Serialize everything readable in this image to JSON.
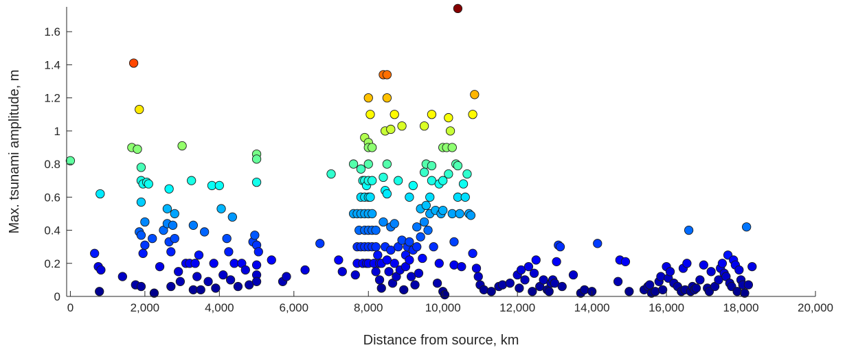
{
  "chart_data": {
    "type": "scatter",
    "title": "",
    "xlabel": "Distance from source, km",
    "ylabel": "Max. tsunami amplitude, m",
    "xlim": [
      -100,
      20000
    ],
    "ylim": [
      0,
      1.75
    ],
    "xticks": [
      0,
      2000,
      4000,
      6000,
      8000,
      10000,
      12000,
      14000,
      16000,
      18000,
      20000
    ],
    "xtick_labels": [
      "0",
      "2,000",
      "4,000",
      "6,000",
      "8,000",
      "10,000",
      "12,000",
      "14,000",
      "16,000",
      "18,000",
      "20,000"
    ],
    "yticks": [
      0,
      0.2,
      0.4,
      0.6,
      0.8,
      1.0,
      1.2,
      1.4,
      1.6
    ],
    "ytick_labels": [
      "0",
      "0.2",
      "0.4",
      "0.6",
      "0.8",
      "1",
      "1.2",
      "1.4",
      "1.6"
    ],
    "grid": false,
    "legend": "none",
    "color_encoding": "jet colormap by amplitude (0 m = dark blue, 1.75 m = dark red)",
    "points": [
      [
        0,
        0.82
      ],
      [
        650,
        0.26
      ],
      [
        750,
        0.18
      ],
      [
        780,
        0.03
      ],
      [
        800,
        0.62
      ],
      [
        820,
        0.16
      ],
      [
        1400,
        0.12
      ],
      [
        1650,
        0.9
      ],
      [
        1700,
        1.41
      ],
      [
        1750,
        0.07
      ],
      [
        1800,
        0.89
      ],
      [
        1850,
        1.13
      ],
      [
        1850,
        0.39
      ],
      [
        1900,
        0.78
      ],
      [
        1900,
        0.57
      ],
      [
        1900,
        0.7
      ],
      [
        1900,
        0.37
      ],
      [
        1900,
        0.06
      ],
      [
        1950,
        0.26
      ],
      [
        1950,
        0.68
      ],
      [
        2000,
        0.45
      ],
      [
        2000,
        0.31
      ],
      [
        2050,
        0.69
      ],
      [
        2100,
        0.68
      ],
      [
        2200,
        0.35
      ],
      [
        2250,
        0.02
      ],
      [
        2400,
        0.18
      ],
      [
        2500,
        0.4
      ],
      [
        2600,
        0.53
      ],
      [
        2600,
        0.44
      ],
      [
        2650,
        0.33
      ],
      [
        2650,
        0.65
      ],
      [
        2700,
        0.27
      ],
      [
        2700,
        0.06
      ],
      [
        2750,
        0.43
      ],
      [
        2800,
        0.5
      ],
      [
        2800,
        0.35
      ],
      [
        2900,
        0.15
      ],
      [
        2950,
        0.09
      ],
      [
        3000,
        0.91
      ],
      [
        3100,
        0.2
      ],
      [
        3200,
        0.2
      ],
      [
        3250,
        0.7
      ],
      [
        3300,
        0.04
      ],
      [
        3300,
        0.43
      ],
      [
        3350,
        0.2
      ],
      [
        3400,
        0.12
      ],
      [
        3450,
        0.25
      ],
      [
        3500,
        0.04
      ],
      [
        3600,
        0.39
      ],
      [
        3700,
        0.09
      ],
      [
        3800,
        0.67
      ],
      [
        3850,
        0.2
      ],
      [
        3900,
        0.05
      ],
      [
        4000,
        0.67
      ],
      [
        4050,
        0.53
      ],
      [
        4100,
        0.13
      ],
      [
        4200,
        0.35
      ],
      [
        4250,
        0.27
      ],
      [
        4300,
        0.1
      ],
      [
        4350,
        0.48
      ],
      [
        4400,
        0.2
      ],
      [
        4500,
        0.06
      ],
      [
        4600,
        0.2
      ],
      [
        4700,
        0.16
      ],
      [
        4800,
        0.07
      ],
      [
        4900,
        0.33
      ],
      [
        4950,
        0.37
      ],
      [
        5000,
        0.86
      ],
      [
        5000,
        0.83
      ],
      [
        5000,
        0.69
      ],
      [
        5000,
        0.31
      ],
      [
        5000,
        0.19
      ],
      [
        5000,
        0.13
      ],
      [
        5000,
        0.09
      ],
      [
        5050,
        0.27
      ],
      [
        5400,
        0.22
      ],
      [
        5700,
        0.09
      ],
      [
        5800,
        0.12
      ],
      [
        6300,
        0.16
      ],
      [
        6700,
        0.32
      ],
      [
        7000,
        0.74
      ],
      [
        7200,
        0.22
      ],
      [
        7300,
        0.15
      ],
      [
        7600,
        0.8
      ],
      [
        7600,
        0.5
      ],
      [
        7650,
        0.13
      ],
      [
        7700,
        0.5
      ],
      [
        7700,
        0.3
      ],
      [
        7700,
        0.2
      ],
      [
        7750,
        0.4
      ],
      [
        7800,
        0.77
      ],
      [
        7800,
        0.6
      ],
      [
        7800,
        0.5
      ],
      [
        7800,
        0.3
      ],
      [
        7850,
        0.7
      ],
      [
        7850,
        0.2
      ],
      [
        7900,
        0.96
      ],
      [
        7900,
        0.7
      ],
      [
        7900,
        0.6
      ],
      [
        7900,
        0.5
      ],
      [
        7900,
        0.4
      ],
      [
        7900,
        0.3
      ],
      [
        7950,
        0.67
      ],
      [
        7950,
        0.2
      ],
      [
        8000,
        1.2
      ],
      [
        8000,
        0.93
      ],
      [
        8000,
        0.9
      ],
      [
        8000,
        0.8
      ],
      [
        8000,
        0.7
      ],
      [
        8000,
        0.6
      ],
      [
        8000,
        0.5
      ],
      [
        8000,
        0.4
      ],
      [
        8000,
        0.3
      ],
      [
        8000,
        0.2
      ],
      [
        8050,
        1.1
      ],
      [
        8050,
        0.6
      ],
      [
        8100,
        0.9
      ],
      [
        8100,
        0.7
      ],
      [
        8100,
        0.5
      ],
      [
        8100,
        0.4
      ],
      [
        8100,
        0.3
      ],
      [
        8150,
        0.2
      ],
      [
        8200,
        0.4
      ],
      [
        8200,
        0.3
      ],
      [
        8200,
        0.15
      ],
      [
        8250,
        0.25
      ],
      [
        8300,
        0.2
      ],
      [
        8300,
        0.1
      ],
      [
        8350,
        0.2
      ],
      [
        8350,
        0.05
      ],
      [
        8400,
        1.34
      ],
      [
        8400,
        0.72
      ],
      [
        8400,
        0.45
      ],
      [
        8450,
        1.0
      ],
      [
        8450,
        0.64
      ],
      [
        8450,
        0.3
      ],
      [
        8500,
        1.34
      ],
      [
        8500,
        1.2
      ],
      [
        8500,
        0.8
      ],
      [
        8500,
        0.62
      ],
      [
        8500,
        0.22
      ],
      [
        8550,
        0.15
      ],
      [
        8600,
        1.01
      ],
      [
        8600,
        0.42
      ],
      [
        8600,
        0.28
      ],
      [
        8650,
        0.08
      ],
      [
        8700,
        1.1
      ],
      [
        8700,
        0.44
      ],
      [
        8700,
        0.2
      ],
      [
        8750,
        0.12
      ],
      [
        8800,
        0.7
      ],
      [
        8800,
        0.3
      ],
      [
        8850,
        0.16
      ],
      [
        8900,
        1.03
      ],
      [
        8900,
        0.34
      ],
      [
        8950,
        0.04
      ],
      [
        9000,
        0.25
      ],
      [
        9000,
        0.18
      ],
      [
        9050,
        0.3
      ],
      [
        9100,
        0.6
      ],
      [
        9100,
        0.33
      ],
      [
        9100,
        0.22
      ],
      [
        9150,
        0.12
      ],
      [
        9200,
        0.67
      ],
      [
        9200,
        0.28
      ],
      [
        9250,
        0.07
      ],
      [
        9300,
        0.42
      ],
      [
        9300,
        0.3
      ],
      [
        9350,
        0.14
      ],
      [
        9400,
        0.53
      ],
      [
        9400,
        0.36
      ],
      [
        9450,
        0.23
      ],
      [
        9500,
        1.03
      ],
      [
        9500,
        0.75
      ],
      [
        9500,
        0.45
      ],
      [
        9550,
        0.8
      ],
      [
        9550,
        0.55
      ],
      [
        9600,
        0.4
      ],
      [
        9650,
        0.6
      ],
      [
        9650,
        0.5
      ],
      [
        9700,
        1.1
      ],
      [
        9700,
        0.7
      ],
      [
        9700,
        0.79
      ],
      [
        9750,
        0.3
      ],
      [
        9800,
        0.52
      ],
      [
        9850,
        0.08
      ],
      [
        9900,
        0.68
      ],
      [
        9900,
        0.2
      ],
      [
        9950,
        0.5
      ],
      [
        10000,
        0.9
      ],
      [
        10000,
        0.7
      ],
      [
        10000,
        0.52
      ],
      [
        10000,
        0.03
      ],
      [
        10050,
        0.01
      ],
      [
        10100,
        0.9
      ],
      [
        10150,
        1.08
      ],
      [
        10150,
        0.74
      ],
      [
        10200,
        1.0
      ],
      [
        10250,
        0.9
      ],
      [
        10250,
        0.5
      ],
      [
        10300,
        0.33
      ],
      [
        10300,
        0.19
      ],
      [
        10350,
        0.8
      ],
      [
        10400,
        1.74
      ],
      [
        10400,
        0.79
      ],
      [
        10400,
        0.6
      ],
      [
        10450,
        0.5
      ],
      [
        10500,
        0.18
      ],
      [
        10550,
        0.68
      ],
      [
        10600,
        0.6
      ],
      [
        10650,
        0.74
      ],
      [
        10700,
        0.5
      ],
      [
        10750,
        0.49
      ],
      [
        10800,
        1.1
      ],
      [
        10800,
        0.26
      ],
      [
        10850,
        1.22
      ],
      [
        10900,
        0.17
      ],
      [
        10950,
        0.12
      ],
      [
        11000,
        0.07
      ],
      [
        11100,
        0.04
      ],
      [
        11300,
        0.03
      ],
      [
        11500,
        0.06
      ],
      [
        11600,
        0.07
      ],
      [
        11800,
        0.08
      ],
      [
        12000,
        0.13
      ],
      [
        12050,
        0.05
      ],
      [
        12100,
        0.16
      ],
      [
        12200,
        0.1
      ],
      [
        12300,
        0.18
      ],
      [
        12400,
        0.03
      ],
      [
        12450,
        0.14
      ],
      [
        12500,
        0.22
      ],
      [
        12600,
        0.06
      ],
      [
        12700,
        0.1
      ],
      [
        12800,
        0.04
      ],
      [
        12850,
        0.03
      ],
      [
        12900,
        0.08
      ],
      [
        12950,
        0.1
      ],
      [
        13000,
        0.08
      ],
      [
        13050,
        0.21
      ],
      [
        13100,
        0.31
      ],
      [
        13150,
        0.3
      ],
      [
        13200,
        0.06
      ],
      [
        13500,
        0.13
      ],
      [
        13700,
        0.02
      ],
      [
        13800,
        0.04
      ],
      [
        14000,
        0.03
      ],
      [
        14150,
        0.32
      ],
      [
        14700,
        0.09
      ],
      [
        14750,
        0.22
      ],
      [
        14900,
        0.21
      ],
      [
        15000,
        0.03
      ],
      [
        15400,
        0.04
      ],
      [
        15500,
        0.06
      ],
      [
        15550,
        0.07
      ],
      [
        15600,
        0.02
      ],
      [
        15700,
        0.03
      ],
      [
        15800,
        0.09
      ],
      [
        15850,
        0.12
      ],
      [
        15900,
        0.04
      ],
      [
        16000,
        0.18
      ],
      [
        16050,
        0.11
      ],
      [
        16100,
        0.15
      ],
      [
        16200,
        0.08
      ],
      [
        16300,
        0.06
      ],
      [
        16400,
        0.03
      ],
      [
        16450,
        0.17
      ],
      [
        16500,
        0.04
      ],
      [
        16550,
        0.2
      ],
      [
        16600,
        0.4
      ],
      [
        16650,
        0.03
      ],
      [
        16700,
        0.06
      ],
      [
        16750,
        0.04
      ],
      [
        16800,
        0.05
      ],
      [
        16900,
        0.1
      ],
      [
        17000,
        0.19
      ],
      [
        17100,
        0.05
      ],
      [
        17150,
        0.03
      ],
      [
        17200,
        0.15
      ],
      [
        17300,
        0.06
      ],
      [
        17400,
        0.1
      ],
      [
        17450,
        0.17
      ],
      [
        17500,
        0.2
      ],
      [
        17550,
        0.14
      ],
      [
        17600,
        0.12
      ],
      [
        17650,
        0.25
      ],
      [
        17700,
        0.08
      ],
      [
        17750,
        0.06
      ],
      [
        17800,
        0.22
      ],
      [
        17850,
        0.19
      ],
      [
        17900,
        0.03
      ],
      [
        17950,
        0.16
      ],
      [
        18000,
        0.1
      ],
      [
        18050,
        0.07
      ],
      [
        18100,
        0.02
      ],
      [
        18150,
        0.42
      ],
      [
        18200,
        0.07
      ],
      [
        18300,
        0.18
      ]
    ]
  }
}
